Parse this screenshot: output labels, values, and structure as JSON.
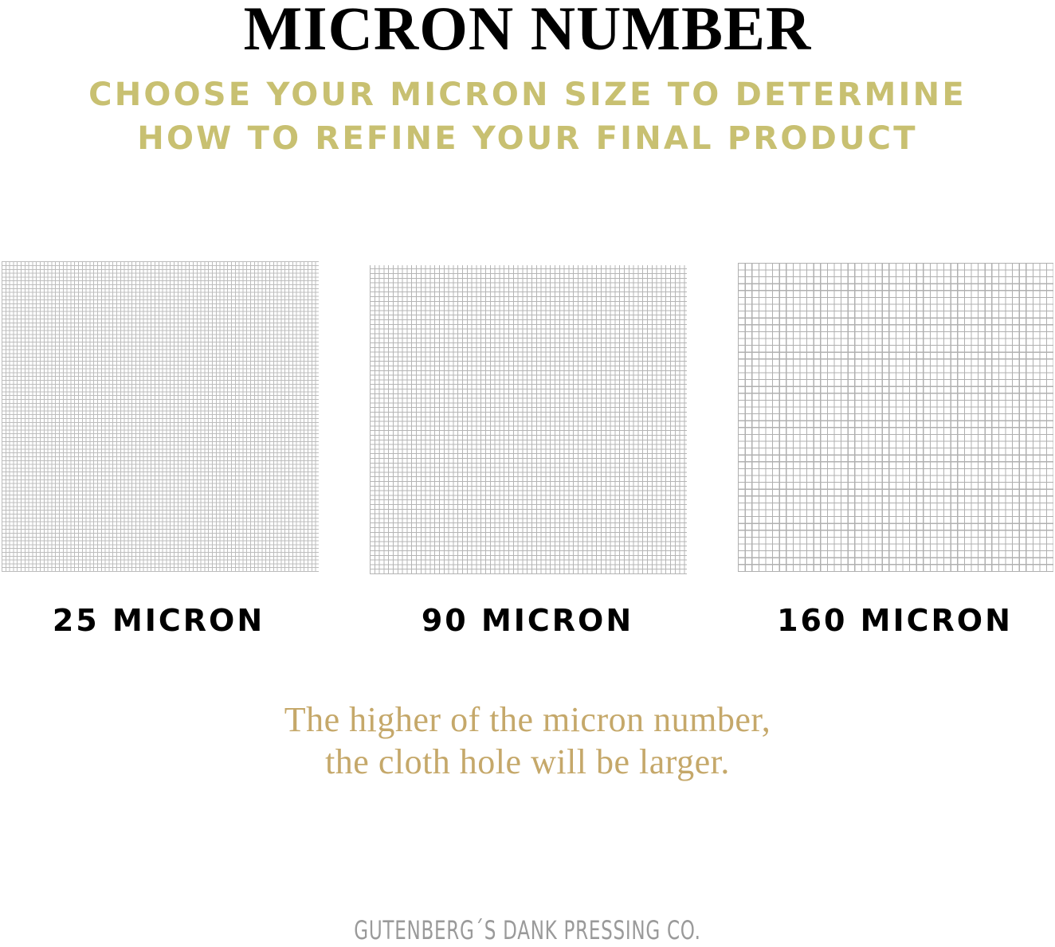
{
  "title": "MICRON NUMBER",
  "subtitle": {
    "line1": "CHOOSE YOUR MICRON SIZE TO DETERMINE",
    "line2": "HOW TO REFINE YOUR FINAL PRODUCT"
  },
  "meshes": [
    {
      "label": "25 MICRON"
    },
    {
      "label": "90 MICRON"
    },
    {
      "label": "160 MICRON"
    }
  ],
  "note": {
    "line1": "The higher of the micron number,",
    "line2": "the cloth hole will be larger."
  },
  "brand": "GUTENBERG´S DANK PRESSING CO.",
  "colors": {
    "subtitle": "#c8c071",
    "note": "#c5a86a",
    "brand": "#9a9a9a",
    "mesh_lines": "#b5b5b5"
  }
}
